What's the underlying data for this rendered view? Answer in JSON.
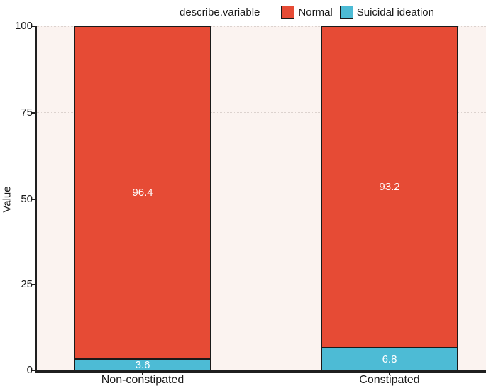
{
  "figure": {
    "background_color": "#ffffff",
    "panel_background_color": "#FBF3F0",
    "axis_color": "#1f1f1f",
    "gridline_style": "dotted"
  },
  "chart_data": {
    "type": "bar",
    "stacked": true,
    "orientation": "vertical",
    "legend_title": "describe.variable",
    "legend_position": "top",
    "categories": [
      "Non-constipated",
      "Constipated"
    ],
    "series": [
      {
        "name": "Suicidal ideation",
        "color": "#4DBBD5",
        "values": [
          3.6,
          6.8
        ]
      },
      {
        "name": "Normal",
        "color": "#E64B35",
        "values": [
          96.4,
          93.2
        ]
      }
    ],
    "xlabel": "",
    "ylabel": "Value",
    "ylim": [
      0,
      100
    ],
    "yticks": [
      "0",
      "25",
      "50",
      "75",
      "100"
    ],
    "grid": "horizontal-dotted",
    "bar_value_labels_shown": true,
    "bar_value_label_color": "#ffffff"
  }
}
